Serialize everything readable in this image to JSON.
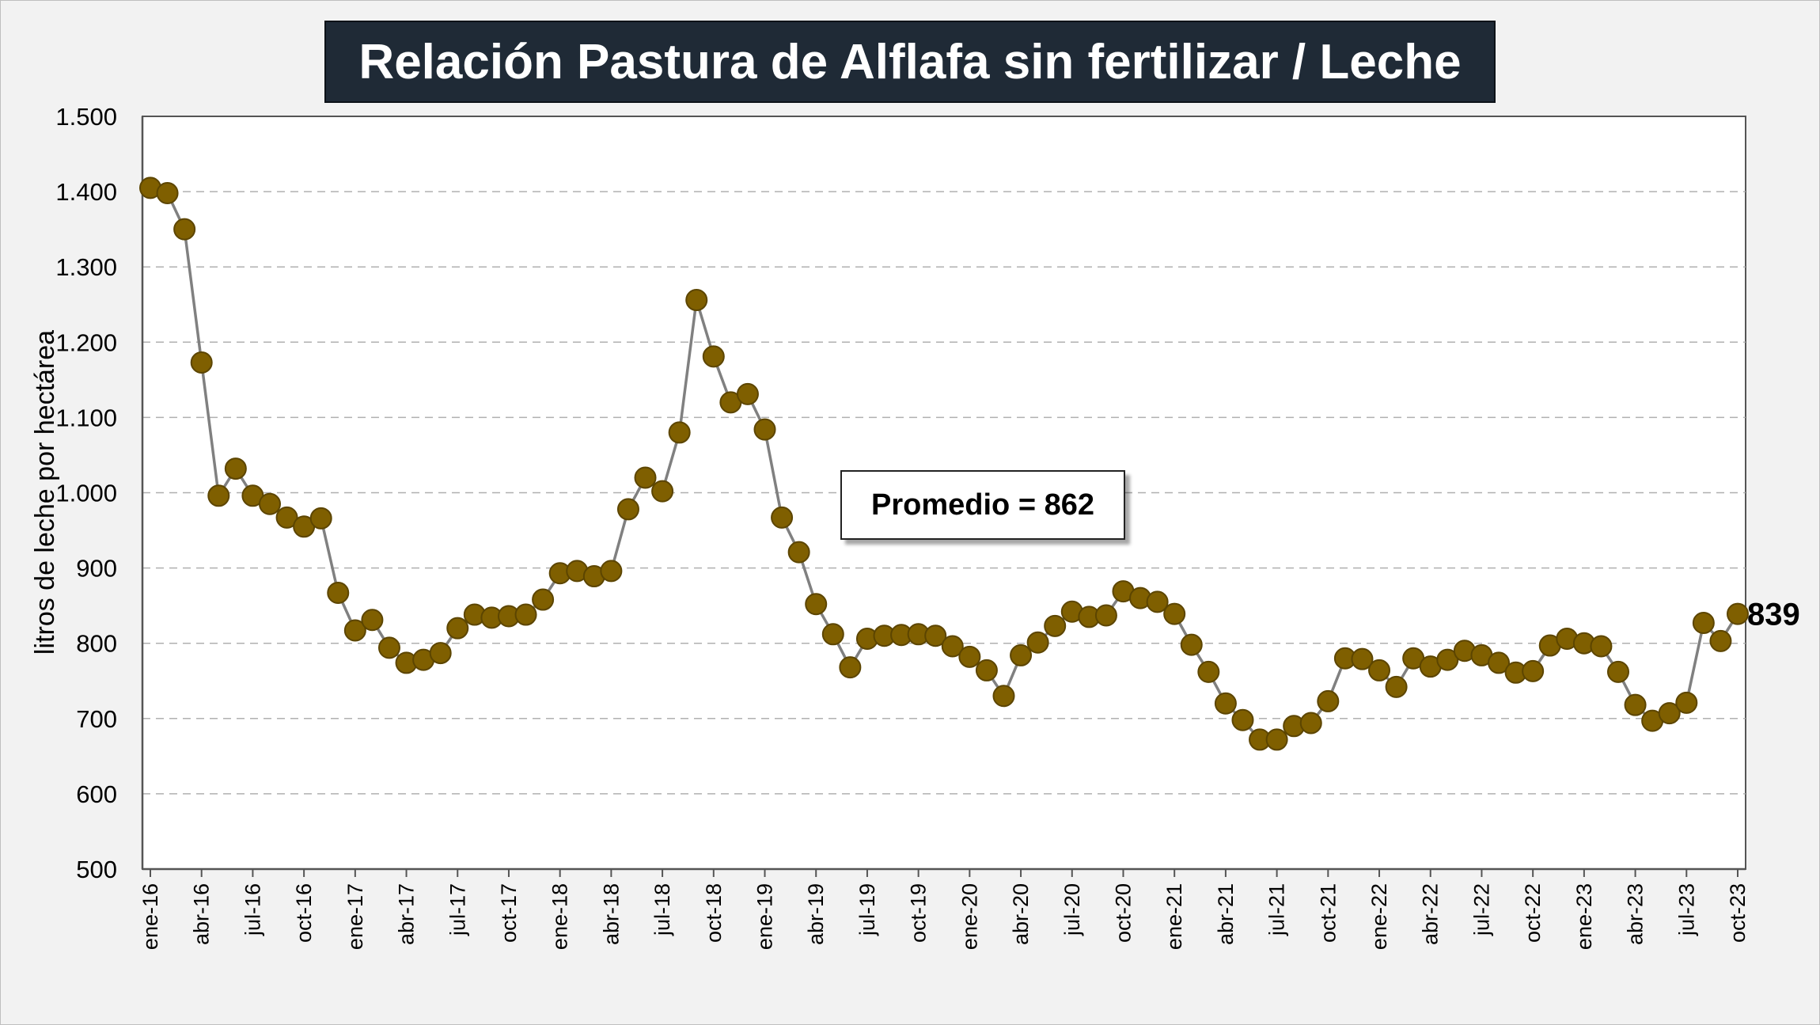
{
  "chart_data": {
    "type": "line",
    "title": "Relación Pastura de Alflafa sin fertilizar / Leche",
    "ylabel": "litros de leche por hectárea",
    "ylim": [
      500,
      1500
    ],
    "yticks": [
      500,
      600,
      700,
      800,
      900,
      1000,
      1100,
      1200,
      1300,
      1400,
      1500
    ],
    "ytick_labels": [
      "500",
      "600",
      "700",
      "800",
      "900",
      "1.000",
      "1.100",
      "1.200",
      "1.300",
      "1.400",
      "1.500"
    ],
    "grid": "horizontal dashed",
    "annotation": "Promedio = 862",
    "last_value_label": "839",
    "colors": {
      "marker_fill": "#7f5f00",
      "marker_stroke": "#5c4500",
      "line": "#808080",
      "title_bg": "#1f2a36"
    },
    "x_tick_labels": [
      "ene-16",
      "abr-16",
      "jul-16",
      "oct-16",
      "ene-17",
      "abr-17",
      "jul-17",
      "oct-17",
      "ene-18",
      "abr-18",
      "jul-18",
      "oct-18",
      "ene-19",
      "abr-19",
      "jul-19",
      "oct-19",
      "ene-20",
      "abr-20",
      "jul-20",
      "oct-20",
      "ene-21",
      "abr-21",
      "jul-21",
      "oct-21",
      "ene-22",
      "abr-22",
      "jul-22",
      "oct-22",
      "ene-23",
      "abr-23",
      "jul-23",
      "oct-23"
    ],
    "x": [
      "ene-16",
      "feb-16",
      "mar-16",
      "abr-16",
      "may-16",
      "jun-16",
      "jul-16",
      "ago-16",
      "sep-16",
      "oct-16",
      "nov-16",
      "dic-16",
      "ene-17",
      "feb-17",
      "mar-17",
      "abr-17",
      "may-17",
      "jun-17",
      "jul-17",
      "ago-17",
      "sep-17",
      "oct-17",
      "nov-17",
      "dic-17",
      "ene-18",
      "feb-18",
      "mar-18",
      "abr-18",
      "may-18",
      "jun-18",
      "jul-18",
      "ago-18",
      "sep-18",
      "oct-18",
      "nov-18",
      "dic-18",
      "ene-19",
      "feb-19",
      "mar-19",
      "abr-19",
      "may-19",
      "jun-19",
      "jul-19",
      "ago-19",
      "sep-19",
      "oct-19",
      "nov-19",
      "dic-19",
      "ene-20",
      "feb-20",
      "mar-20",
      "abr-20",
      "may-20",
      "jun-20",
      "jul-20",
      "ago-20",
      "sep-20",
      "oct-20",
      "nov-20",
      "dic-20",
      "ene-21",
      "feb-21",
      "mar-21",
      "abr-21",
      "may-21",
      "jun-21",
      "jul-21",
      "ago-21",
      "sep-21",
      "oct-21",
      "nov-21",
      "dic-21",
      "ene-22",
      "feb-22",
      "mar-22",
      "abr-22",
      "may-22",
      "jun-22",
      "jul-22",
      "ago-22",
      "sep-22",
      "oct-22",
      "nov-22",
      "dic-22",
      "ene-23",
      "feb-23",
      "mar-23",
      "abr-23",
      "may-23",
      "jun-23",
      "jul-23",
      "ago-23",
      "sep-23",
      "oct-23"
    ],
    "series": [
      {
        "values": [
          1405,
          1398,
          1350,
          1173,
          996,
          1032,
          996,
          985,
          967,
          955,
          966,
          867,
          817,
          831,
          794,
          774,
          778,
          787,
          820,
          838,
          834,
          836,
          838,
          858,
          893,
          896,
          889,
          896,
          978,
          1020,
          1002,
          1080,
          1256,
          1181,
          1120,
          1131,
          1084,
          967,
          921,
          852,
          812,
          768,
          806,
          810,
          811,
          812,
          810,
          796,
          782,
          764,
          730,
          784,
          801,
          823,
          842,
          835,
          837,
          869,
          860,
          855,
          839,
          798,
          762,
          720,
          698,
          672,
          672,
          690,
          694,
          723,
          780,
          779,
          764,
          742,
          780,
          769,
          778,
          790,
          784,
          774,
          761,
          763,
          797,
          806,
          800,
          796,
          762,
          718,
          697,
          707,
          721,
          827,
          803,
          839
        ]
      }
    ]
  }
}
